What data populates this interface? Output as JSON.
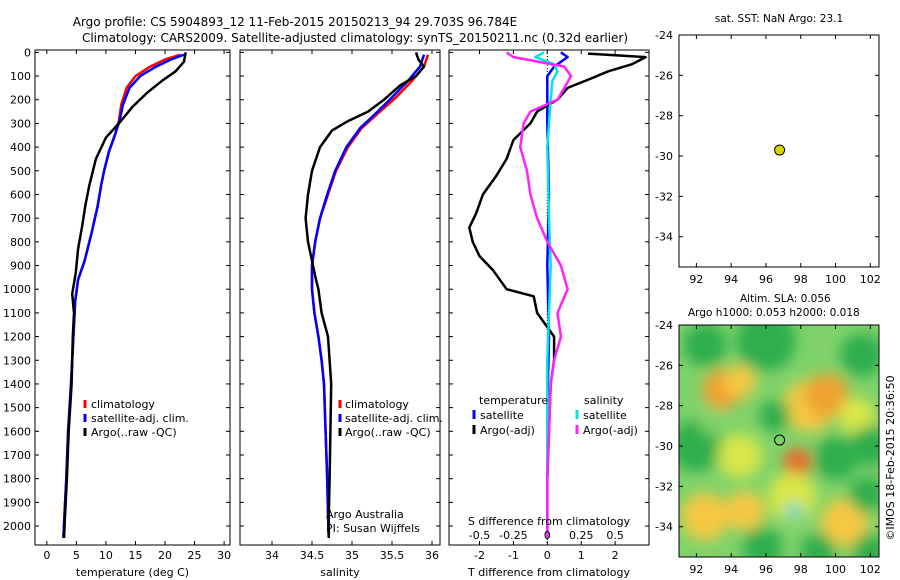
{
  "header": {
    "title_line1": "Argo profile: CS 5904893_12 11-Feb-2015 20150213_94 29.703S 96.784E",
    "title_line2": "Climatology: CARS2009. Satellite-adjusted climatology: synTS_20150211.nc (0.32d earlier)"
  },
  "colors": {
    "climatology": "#ff0000",
    "satellite": "#0000ff",
    "argo": "#000000",
    "satellite_salinity": "#00e5e5",
    "argo_salinity_diff": "#ff22ff",
    "marker_fill": "#d6d600"
  },
  "chart_data": [
    {
      "id": "temperature",
      "type": "line",
      "xlabel": "temperature (deg C)",
      "ylabel": "",
      "xlim": [
        -2,
        31
      ],
      "ylim": [
        2080,
        -10
      ],
      "xticks": [
        0,
        5,
        10,
        15,
        20,
        25,
        30
      ],
      "yticks": [
        0,
        100,
        200,
        300,
        400,
        500,
        600,
        700,
        800,
        900,
        1000,
        1100,
        1200,
        1300,
        1400,
        1500,
        1600,
        1700,
        1800,
        1900,
        2000
      ],
      "series": [
        {
          "name": "climatology",
          "color": "#ff0000",
          "points": [
            [
              22.6,
              10
            ],
            [
              20,
              30
            ],
            [
              17.5,
              60
            ],
            [
              15,
              100
            ],
            [
              13.5,
              150
            ],
            [
              12.6,
              220
            ],
            [
              12.2,
              290
            ],
            [
              11.5,
              350
            ],
            [
              10.5,
              420
            ],
            [
              9.7,
              500
            ],
            [
              9.2,
              560
            ],
            [
              8.6,
              650
            ],
            [
              7.6,
              760
            ],
            [
              6.4,
              880
            ],
            [
              5.3,
              960
            ],
            [
              4.8,
              1050
            ],
            [
              4.5,
              1200
            ],
            [
              4.1,
              1400
            ],
            [
              3.6,
              1600
            ],
            [
              3.3,
              1800
            ],
            [
              3.0,
              1950
            ],
            [
              2.8,
              2050
            ]
          ]
        },
        {
          "name": "satellite-adj. clim.",
          "color": "#0000ff",
          "points": [
            [
              23.2,
              10
            ],
            [
              21,
              30
            ],
            [
              18.5,
              60
            ],
            [
              15.8,
              100
            ],
            [
              14,
              150
            ],
            [
              12.9,
              220
            ],
            [
              12.3,
              290
            ],
            [
              11.5,
              350
            ],
            [
              10.5,
              420
            ],
            [
              9.7,
              500
            ],
            [
              9.2,
              560
            ],
            [
              8.6,
              650
            ],
            [
              7.6,
              760
            ],
            [
              6.4,
              880
            ],
            [
              5.3,
              960
            ],
            [
              4.8,
              1050
            ],
            [
              4.5,
              1200
            ],
            [
              4.1,
              1400
            ],
            [
              3.6,
              1600
            ],
            [
              3.3,
              1800
            ],
            [
              3.0,
              1950
            ],
            [
              2.8,
              2050
            ]
          ]
        },
        {
          "name": "Argo(..raw -QC)",
          "color": "#000000",
          "points": [
            [
              23.5,
              0
            ],
            [
              23.2,
              40
            ],
            [
              21.8,
              80
            ],
            [
              19.5,
              120
            ],
            [
              17,
              170
            ],
            [
              14.5,
              230
            ],
            [
              12.2,
              300
            ],
            [
              10,
              360
            ],
            [
              8.3,
              450
            ],
            [
              7.2,
              560
            ],
            [
              6.5,
              650
            ],
            [
              6,
              730
            ],
            [
              5.3,
              830
            ],
            [
              4.9,
              930
            ],
            [
              4.3,
              1020
            ],
            [
              4.6,
              1100
            ],
            [
              4.4,
              1200
            ],
            [
              4.2,
              1400
            ],
            [
              3.7,
              1600
            ],
            [
              3.4,
              1800
            ],
            [
              3.1,
              1950
            ],
            [
              2.9,
              2050
            ]
          ]
        }
      ],
      "legend": {
        "placement": "lower-middle",
        "entries": [
          "climatology",
          "satellite-adj. clim.",
          "Argo(..raw -QC)"
        ]
      }
    },
    {
      "id": "salinity",
      "type": "line",
      "xlabel": "salinity",
      "ylabel": "",
      "xlim": [
        33.6,
        36.1
      ],
      "ylim": [
        2080,
        -10
      ],
      "xticks": [
        34,
        34.5,
        35,
        35.5,
        36
      ],
      "xtick_labels": [
        "34",
        "34.5",
        "35",
        "35.5",
        "36"
      ],
      "series": [
        {
          "name": "climatology",
          "color": "#ff0000",
          "points": [
            [
              35.95,
              10
            ],
            [
              35.9,
              60
            ],
            [
              35.75,
              120
            ],
            [
              35.55,
              190
            ],
            [
              35.35,
              250
            ],
            [
              35.12,
              320
            ],
            [
              34.95,
              400
            ],
            [
              34.8,
              500
            ],
            [
              34.7,
              600
            ],
            [
              34.6,
              700
            ],
            [
              34.54,
              800
            ],
            [
              34.5,
              900
            ],
            [
              34.5,
              1000
            ],
            [
              34.53,
              1100
            ],
            [
              34.58,
              1200
            ],
            [
              34.62,
              1300
            ],
            [
              34.65,
              1400
            ],
            [
              34.67,
              1600
            ],
            [
              34.69,
              1800
            ],
            [
              34.7,
              1950
            ],
            [
              34.71,
              2050
            ]
          ]
        },
        {
          "name": "satellite-adj. clim.",
          "color": "#0000ff",
          "points": [
            [
              35.9,
              10
            ],
            [
              35.85,
              60
            ],
            [
              35.7,
              120
            ],
            [
              35.5,
              190
            ],
            [
              35.32,
              250
            ],
            [
              35.1,
              320
            ],
            [
              34.93,
              400
            ],
            [
              34.79,
              500
            ],
            [
              34.69,
              600
            ],
            [
              34.6,
              700
            ],
            [
              34.54,
              800
            ],
            [
              34.5,
              900
            ],
            [
              34.5,
              1000
            ],
            [
              34.53,
              1100
            ],
            [
              34.58,
              1200
            ],
            [
              34.62,
              1300
            ],
            [
              34.65,
              1400
            ],
            [
              34.67,
              1600
            ],
            [
              34.69,
              1800
            ],
            [
              34.7,
              1950
            ],
            [
              34.71,
              2050
            ]
          ]
        },
        {
          "name": "Argo(..raw -QC)",
          "color": "#000000",
          "points": [
            [
              35.8,
              0
            ],
            [
              35.83,
              30
            ],
            [
              35.9,
              60
            ],
            [
              35.8,
              100
            ],
            [
              35.6,
              140
            ],
            [
              35.4,
              200
            ],
            [
              35.2,
              250
            ],
            [
              34.95,
              290
            ],
            [
              34.75,
              330
            ],
            [
              34.6,
              400
            ],
            [
              34.5,
              500
            ],
            [
              34.45,
              600
            ],
            [
              34.42,
              700
            ],
            [
              34.45,
              800
            ],
            [
              34.5,
              880
            ],
            [
              34.55,
              960
            ],
            [
              34.58,
              1000
            ],
            [
              34.62,
              1100
            ],
            [
              34.7,
              1200
            ],
            [
              34.72,
              1300
            ],
            [
              34.74,
              1400
            ],
            [
              34.73,
              1600
            ],
            [
              34.72,
              1800
            ],
            [
              34.71,
              1950
            ],
            [
              34.71,
              2050
            ]
          ]
        }
      ],
      "legend": {
        "placement": "lower-middle",
        "entries": [
          "climatology",
          "satellite-adj. clim.",
          "Argo(..raw -QC)"
        ]
      },
      "annotations": [
        "Argo Australia",
        "PI: Susan Wijffels"
      ]
    },
    {
      "id": "difference",
      "type": "line",
      "xlabel": "T difference from climatology",
      "xlabel_top": "S difference from climatology",
      "xlim": [
        -2.9,
        3.0
      ],
      "ylim": [
        2080,
        -10
      ],
      "xticks": [
        -2,
        -1,
        0,
        1,
        2
      ],
      "xtick_labels": [
        "-2",
        "-1",
        "0",
        "1",
        "2"
      ],
      "s_ticks": [
        -0.5,
        -0.25,
        0,
        0.25,
        0.5
      ],
      "s_tick_labels": [
        "-0.5",
        "-0.25",
        "0",
        "0.25",
        "0.5"
      ],
      "series": [
        {
          "name": "temperature satellite",
          "color": "#0000ff",
          "points": [
            [
              0.4,
              0
            ],
            [
              0.6,
              20
            ],
            [
              0.2,
              60
            ],
            [
              0,
              100
            ],
            [
              0,
              300
            ],
            [
              0.05,
              600
            ],
            [
              0,
              900
            ],
            [
              0.05,
              1200
            ],
            [
              0,
              1500
            ],
            [
              0,
              1800
            ],
            [
              0,
              2050
            ]
          ]
        },
        {
          "name": "temperature Argo(-adj)",
          "color": "#000000",
          "points": [
            [
              1.2,
              5
            ],
            [
              2.9,
              20
            ],
            [
              2.5,
              50
            ],
            [
              1.8,
              80
            ],
            [
              1.3,
              110
            ],
            [
              0.6,
              150
            ],
            [
              0.3,
              200
            ],
            [
              -0.3,
              250
            ],
            [
              -0.5,
              300
            ],
            [
              -1,
              370
            ],
            [
              -1.2,
              450
            ],
            [
              -1.5,
              520
            ],
            [
              -1.9,
              600
            ],
            [
              -2.1,
              680
            ],
            [
              -2.3,
              740
            ],
            [
              -2.2,
              800
            ],
            [
              -2.0,
              860
            ],
            [
              -1.6,
              920
            ],
            [
              -1.2,
              1000
            ],
            [
              -0.4,
              1030
            ],
            [
              -0.3,
              1100
            ],
            [
              0.2,
              1200
            ],
            [
              0.2,
              1300
            ],
            [
              0.1,
              1400
            ],
            [
              0.05,
              1600
            ],
            [
              0,
              1800
            ],
            [
              0,
              2050
            ]
          ]
        },
        {
          "name": "salinity satellite",
          "color": "#00e5e5",
          "points": [
            [
              -0.1,
              0
            ],
            [
              -0.35,
              20
            ],
            [
              0.2,
              50
            ],
            [
              0.3,
              80
            ],
            [
              0.15,
              120
            ],
            [
              0.1,
              200
            ],
            [
              0,
              400
            ],
            [
              0.05,
              700
            ],
            [
              0.1,
              900
            ],
            [
              0.05,
              1100
            ],
            [
              0,
              1300
            ],
            [
              0,
              1600
            ],
            [
              0,
              1900
            ],
            [
              0,
              2050
            ]
          ]
        },
        {
          "name": "salinity Argo(-adj)",
          "color": "#ff22ff",
          "points": [
            [
              -1.2,
              0
            ],
            [
              -1.0,
              20
            ],
            [
              0.5,
              60
            ],
            [
              0.7,
              100
            ],
            [
              0.3,
              200
            ],
            [
              -0.5,
              250
            ],
            [
              -0.7,
              300
            ],
            [
              -0.8,
              400
            ],
            [
              -0.6,
              500
            ],
            [
              -0.5,
              600
            ],
            [
              -0.3,
              700
            ],
            [
              0,
              800
            ],
            [
              0.4,
              900
            ],
            [
              0.6,
              1000
            ],
            [
              0.3,
              1100
            ],
            [
              0.4,
              1200
            ],
            [
              0.2,
              1300
            ],
            [
              0.1,
              1400
            ],
            [
              0.05,
              1600
            ],
            [
              0,
              1800
            ],
            [
              0,
              2050
            ]
          ]
        }
      ],
      "legend": {
        "placement": "lower",
        "headers": [
          "temperature",
          "salinity"
        ],
        "entries": [
          "satellite",
          "Argo(-adj)",
          "satellite",
          "Argo(-adj)"
        ]
      }
    },
    {
      "id": "sst_map",
      "type": "scatter",
      "title": "sat. SST: NaN Argo: 23.1",
      "xlim": [
        91,
        102.5
      ],
      "ylim": [
        -35.5,
        -24
      ],
      "xticks": [
        92,
        94,
        96,
        98,
        100,
        102
      ],
      "yticks": [
        -24,
        -26,
        -28,
        -30,
        -32,
        -34
      ],
      "points": [
        {
          "lon": 96.784,
          "lat": -29.703
        }
      ]
    },
    {
      "id": "sla_map",
      "type": "heatmap",
      "title_line1": "Altim. SLA: 0.056",
      "title_line2": "Argo h1000: 0.053 h2000: 0.018",
      "xlim": [
        91,
        102.5
      ],
      "ylim": [
        -35.5,
        -24
      ],
      "xticks": [
        92,
        94,
        96,
        98,
        100,
        102
      ],
      "yticks": [
        -24,
        -26,
        -28,
        -30,
        -32,
        -34
      ],
      "points": [
        {
          "lon": 96.784,
          "lat": -29.703
        }
      ],
      "copyright": "©IMOS 18-Feb-2015 20:36:50"
    }
  ]
}
